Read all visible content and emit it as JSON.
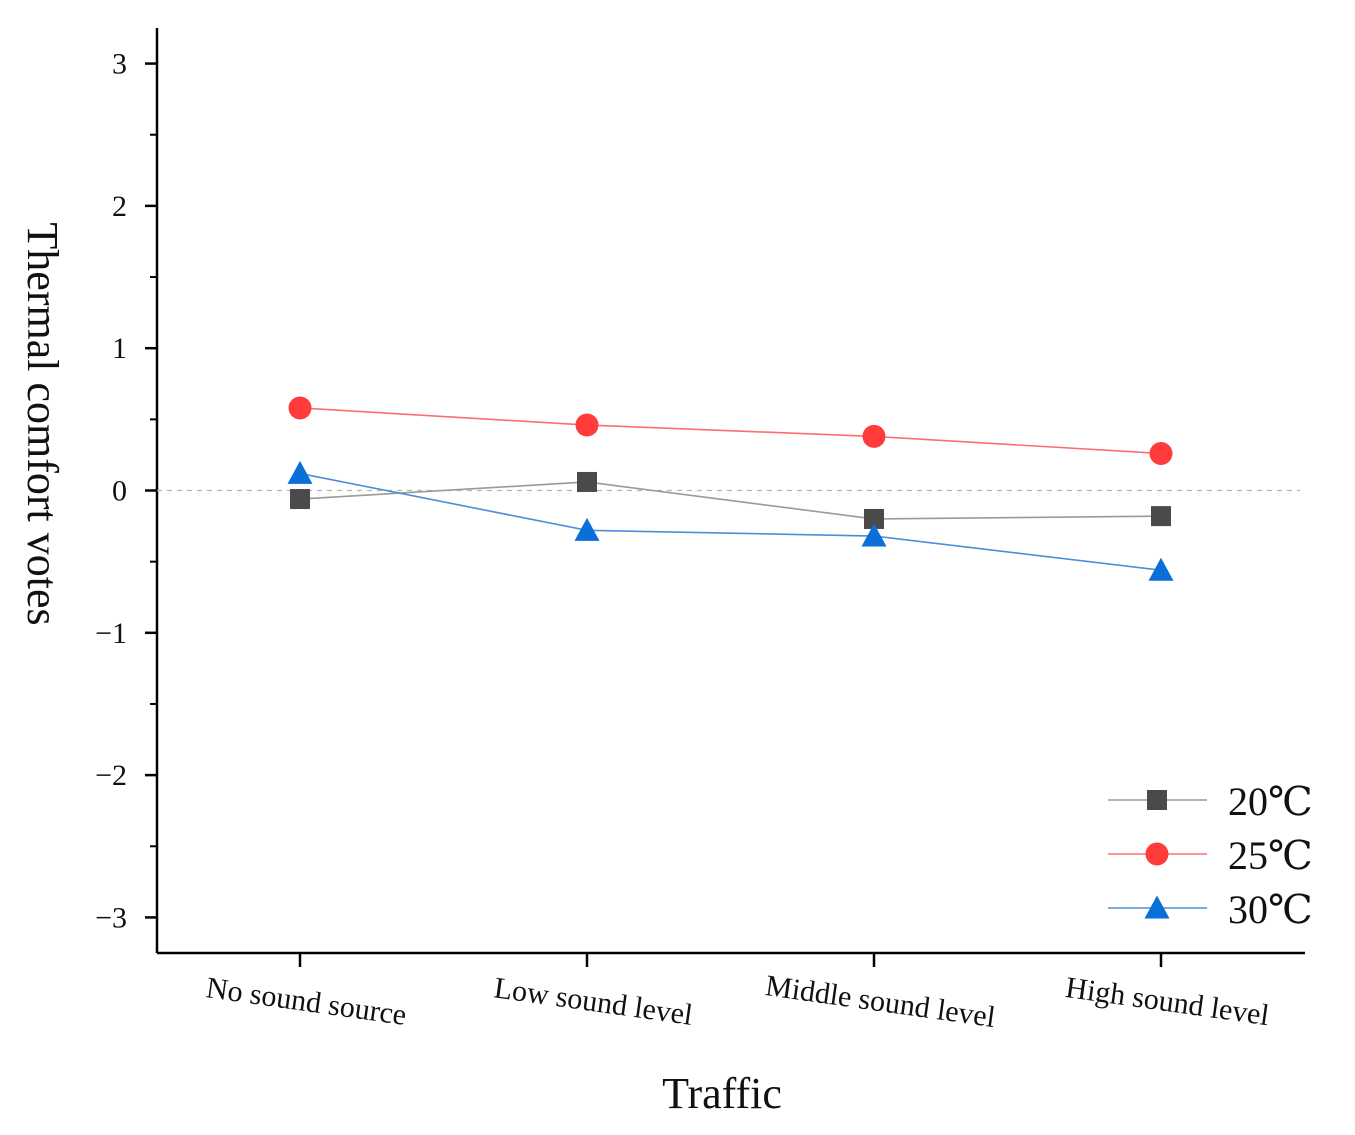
{
  "chart_data": {
    "type": "line",
    "title": "",
    "xlabel": "Traffic",
    "ylabel": "Thermal comfort votes",
    "categories": [
      "No sound source",
      "Low sound level",
      "Middle sound level",
      "High sound level"
    ],
    "ylim": [
      -3.25,
      3.25
    ],
    "yticks": [
      3,
      2,
      1,
      0,
      -1,
      -2,
      -3
    ],
    "ytick_labels": [
      "3",
      "2",
      "1",
      "0",
      "−1",
      "−2",
      "−3"
    ],
    "reference_line": 0,
    "grid": false,
    "legend_position": "bottom-right",
    "series": [
      {
        "name": "20℃",
        "values": [
          -0.06,
          0.06,
          -0.2,
          -0.18
        ],
        "color": "#4a4a4a",
        "line_color": "#9a9a9a",
        "marker": "square"
      },
      {
        "name": "25℃",
        "values": [
          0.58,
          0.46,
          0.38,
          0.26
        ],
        "color": "#ff3b3b",
        "line_color": "#ff6e6e",
        "marker": "circle"
      },
      {
        "name": "30℃",
        "values": [
          0.12,
          -0.28,
          -0.32,
          -0.56
        ],
        "color": "#0a6fd6",
        "line_color": "#4a8fd8",
        "marker": "triangle"
      }
    ]
  }
}
